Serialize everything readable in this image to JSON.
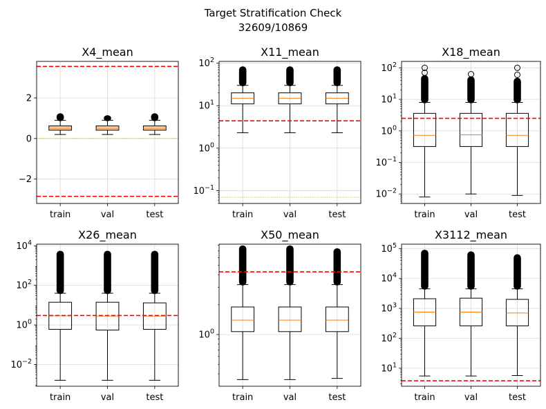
{
  "figure": {
    "suptitle_line1": "Target Stratification Check",
    "suptitle_line2": "32609/10869"
  },
  "colors": {
    "box": "#000000",
    "median": "#ff7f0e",
    "threshold": "#ff0000",
    "zero_line": "#bcbd22",
    "grid": "#d9d9d9",
    "axes_box_fill": "#ffffff"
  },
  "chart_data": [
    {
      "type": "box",
      "title": "X4_mean",
      "scale": "linear",
      "categories": [
        "train",
        "val",
        "test"
      ],
      "ylim": [
        -3.2,
        3.8
      ],
      "yticks": [
        {
          "v": -2,
          "label": "−2"
        },
        {
          "v": 0,
          "label": "0"
        },
        {
          "v": 2,
          "label": "2"
        }
      ],
      "boxes": [
        {
          "whislo": 0.2,
          "q1": 0.41,
          "med": 0.5,
          "q3": 0.62,
          "whishi": 0.9,
          "fliers_to": 1.2,
          "box_fill": "#fcd0a8"
        },
        {
          "whislo": 0.2,
          "q1": 0.41,
          "med": 0.5,
          "q3": 0.62,
          "whishi": 0.9,
          "fliers_to": 1.1,
          "box_fill": "#fcd0a8"
        },
        {
          "whislo": 0.2,
          "q1": 0.41,
          "med": 0.5,
          "q3": 0.62,
          "whishi": 0.9,
          "fliers_to": 1.2,
          "box_fill": "#fcd0a8"
        }
      ],
      "thresholds": [
        3.55,
        -2.85
      ],
      "zero_line": 0
    },
    {
      "type": "box",
      "title": "X11_mean",
      "scale": "log",
      "categories": [
        "train",
        "val",
        "test"
      ],
      "ylim": [
        0.05,
        110
      ],
      "yticks": [
        {
          "v": 0.1,
          "sup": "−1"
        },
        {
          "v": 1,
          "sup": "0"
        },
        {
          "v": 10,
          "sup": "1"
        },
        {
          "v": 100,
          "sup": "2"
        }
      ],
      "boxes": [
        {
          "whislo": 2.3,
          "q1": 11,
          "med": 15,
          "q3": 20,
          "whishi": 30,
          "fliers_to": 80
        },
        {
          "whislo": 2.3,
          "q1": 11,
          "med": 15,
          "q3": 20,
          "whishi": 30,
          "fliers_to": 80
        },
        {
          "whislo": 2.3,
          "q1": 11,
          "med": 15,
          "q3": 20,
          "whishi": 30,
          "fliers_to": 80
        }
      ],
      "thresholds": [
        4.4
      ],
      "zero_line": 0.07
    },
    {
      "type": "box",
      "title": "X18_mean",
      "scale": "log",
      "categories": [
        "train",
        "val",
        "test"
      ],
      "ylim": [
        0.005,
        160
      ],
      "yticks": [
        {
          "v": 0.01,
          "sup": "−2"
        },
        {
          "v": 0.1,
          "sup": "−1"
        },
        {
          "v": 1,
          "sup": "0"
        },
        {
          "v": 10,
          "sup": "1"
        },
        {
          "v": 100,
          "sup": "2"
        }
      ],
      "boxes": [
        {
          "whislo": 0.008,
          "q1": 0.32,
          "med": 0.72,
          "q3": 3.6,
          "whishi": 8,
          "fliers_to": 55,
          "outliers": [
            70,
            100
          ]
        },
        {
          "whislo": 0.01,
          "q1": 0.32,
          "med": 0.75,
          "q3": 3.6,
          "whishi": 8,
          "fliers_to": 50,
          "outliers": [
            63
          ]
        },
        {
          "whislo": 0.009,
          "q1": 0.32,
          "med": 0.72,
          "q3": 3.6,
          "whishi": 8,
          "fliers_to": 45,
          "outliers": [
            60,
            100
          ]
        }
      ],
      "thresholds": [
        2.5
      ]
    },
    {
      "type": "box",
      "title": "X26_mean",
      "scale": "log",
      "categories": [
        "train",
        "val",
        "test"
      ],
      "ylim": [
        0.0008,
        12000
      ],
      "yticks": [
        {
          "v": 0.01,
          "sup": "−2"
        },
        {
          "v": 1,
          "sup": "0"
        },
        {
          "v": 100,
          "sup": "2"
        },
        {
          "v": 10000,
          "sup": "4"
        }
      ],
      "boxes": [
        {
          "whislo": 0.0016,
          "q1": 0.6,
          "med": 2.9,
          "q3": 14,
          "whishi": 40,
          "fliers_to": 5000
        },
        {
          "whislo": 0.0016,
          "q1": 0.55,
          "med": 2.8,
          "q3": 14,
          "whishi": 40,
          "fliers_to": 5000
        },
        {
          "whislo": 0.0016,
          "q1": 0.6,
          "med": 2.8,
          "q3": 13,
          "whishi": 40,
          "fliers_to": 5000
        }
      ],
      "thresholds": [
        3.0
      ]
    },
    {
      "type": "box",
      "title": "X50_mean",
      "scale": "log",
      "categories": [
        "train",
        "val",
        "test"
      ],
      "ylim": [
        0.3,
        8.2
      ],
      "yticks": [
        {
          "v": 1,
          "sup": "0"
        }
      ],
      "minor_ticks": [
        0.4,
        0.5,
        0.6,
        0.7,
        0.8,
        0.9,
        2,
        3,
        4,
        5,
        6,
        7,
        8
      ],
      "boxes": [
        {
          "whislo": 0.35,
          "q1": 1.07,
          "med": 1.4,
          "q3": 1.9,
          "whishi": 3.2,
          "fliers_to": 7.8
        },
        {
          "whislo": 0.35,
          "q1": 1.07,
          "med": 1.4,
          "q3": 1.9,
          "whishi": 3.2,
          "fliers_to": 7.8
        },
        {
          "whislo": 0.36,
          "q1": 1.07,
          "med": 1.4,
          "q3": 1.9,
          "whishi": 3.2,
          "fliers_to": 7.3
        }
      ],
      "thresholds": [
        4.3
      ]
    },
    {
      "type": "box",
      "title": "X3112_mean",
      "scale": "log",
      "categories": [
        "train",
        "val",
        "test"
      ],
      "ylim": [
        2.5,
        140000
      ],
      "yticks": [
        {
          "v": 10,
          "sup": "1"
        },
        {
          "v": 100,
          "sup": "2"
        },
        {
          "v": 1000,
          "sup": "3"
        },
        {
          "v": 10000,
          "sup": "4"
        },
        {
          "v": 100000,
          "sup": "5"
        }
      ],
      "boxes": [
        {
          "whislo": 5.5,
          "q1": 260,
          "med": 750,
          "q3": 2100,
          "whishi": 4500,
          "fliers_to": 85000
        },
        {
          "whislo": 5.5,
          "q1": 260,
          "med": 750,
          "q3": 2200,
          "whishi": 4500,
          "fliers_to": 75000
        },
        {
          "whislo": 5.7,
          "q1": 260,
          "med": 700,
          "q3": 2000,
          "whishi": 4500,
          "fliers_to": 60000
        }
      ],
      "thresholds": [
        3.8
      ]
    }
  ]
}
